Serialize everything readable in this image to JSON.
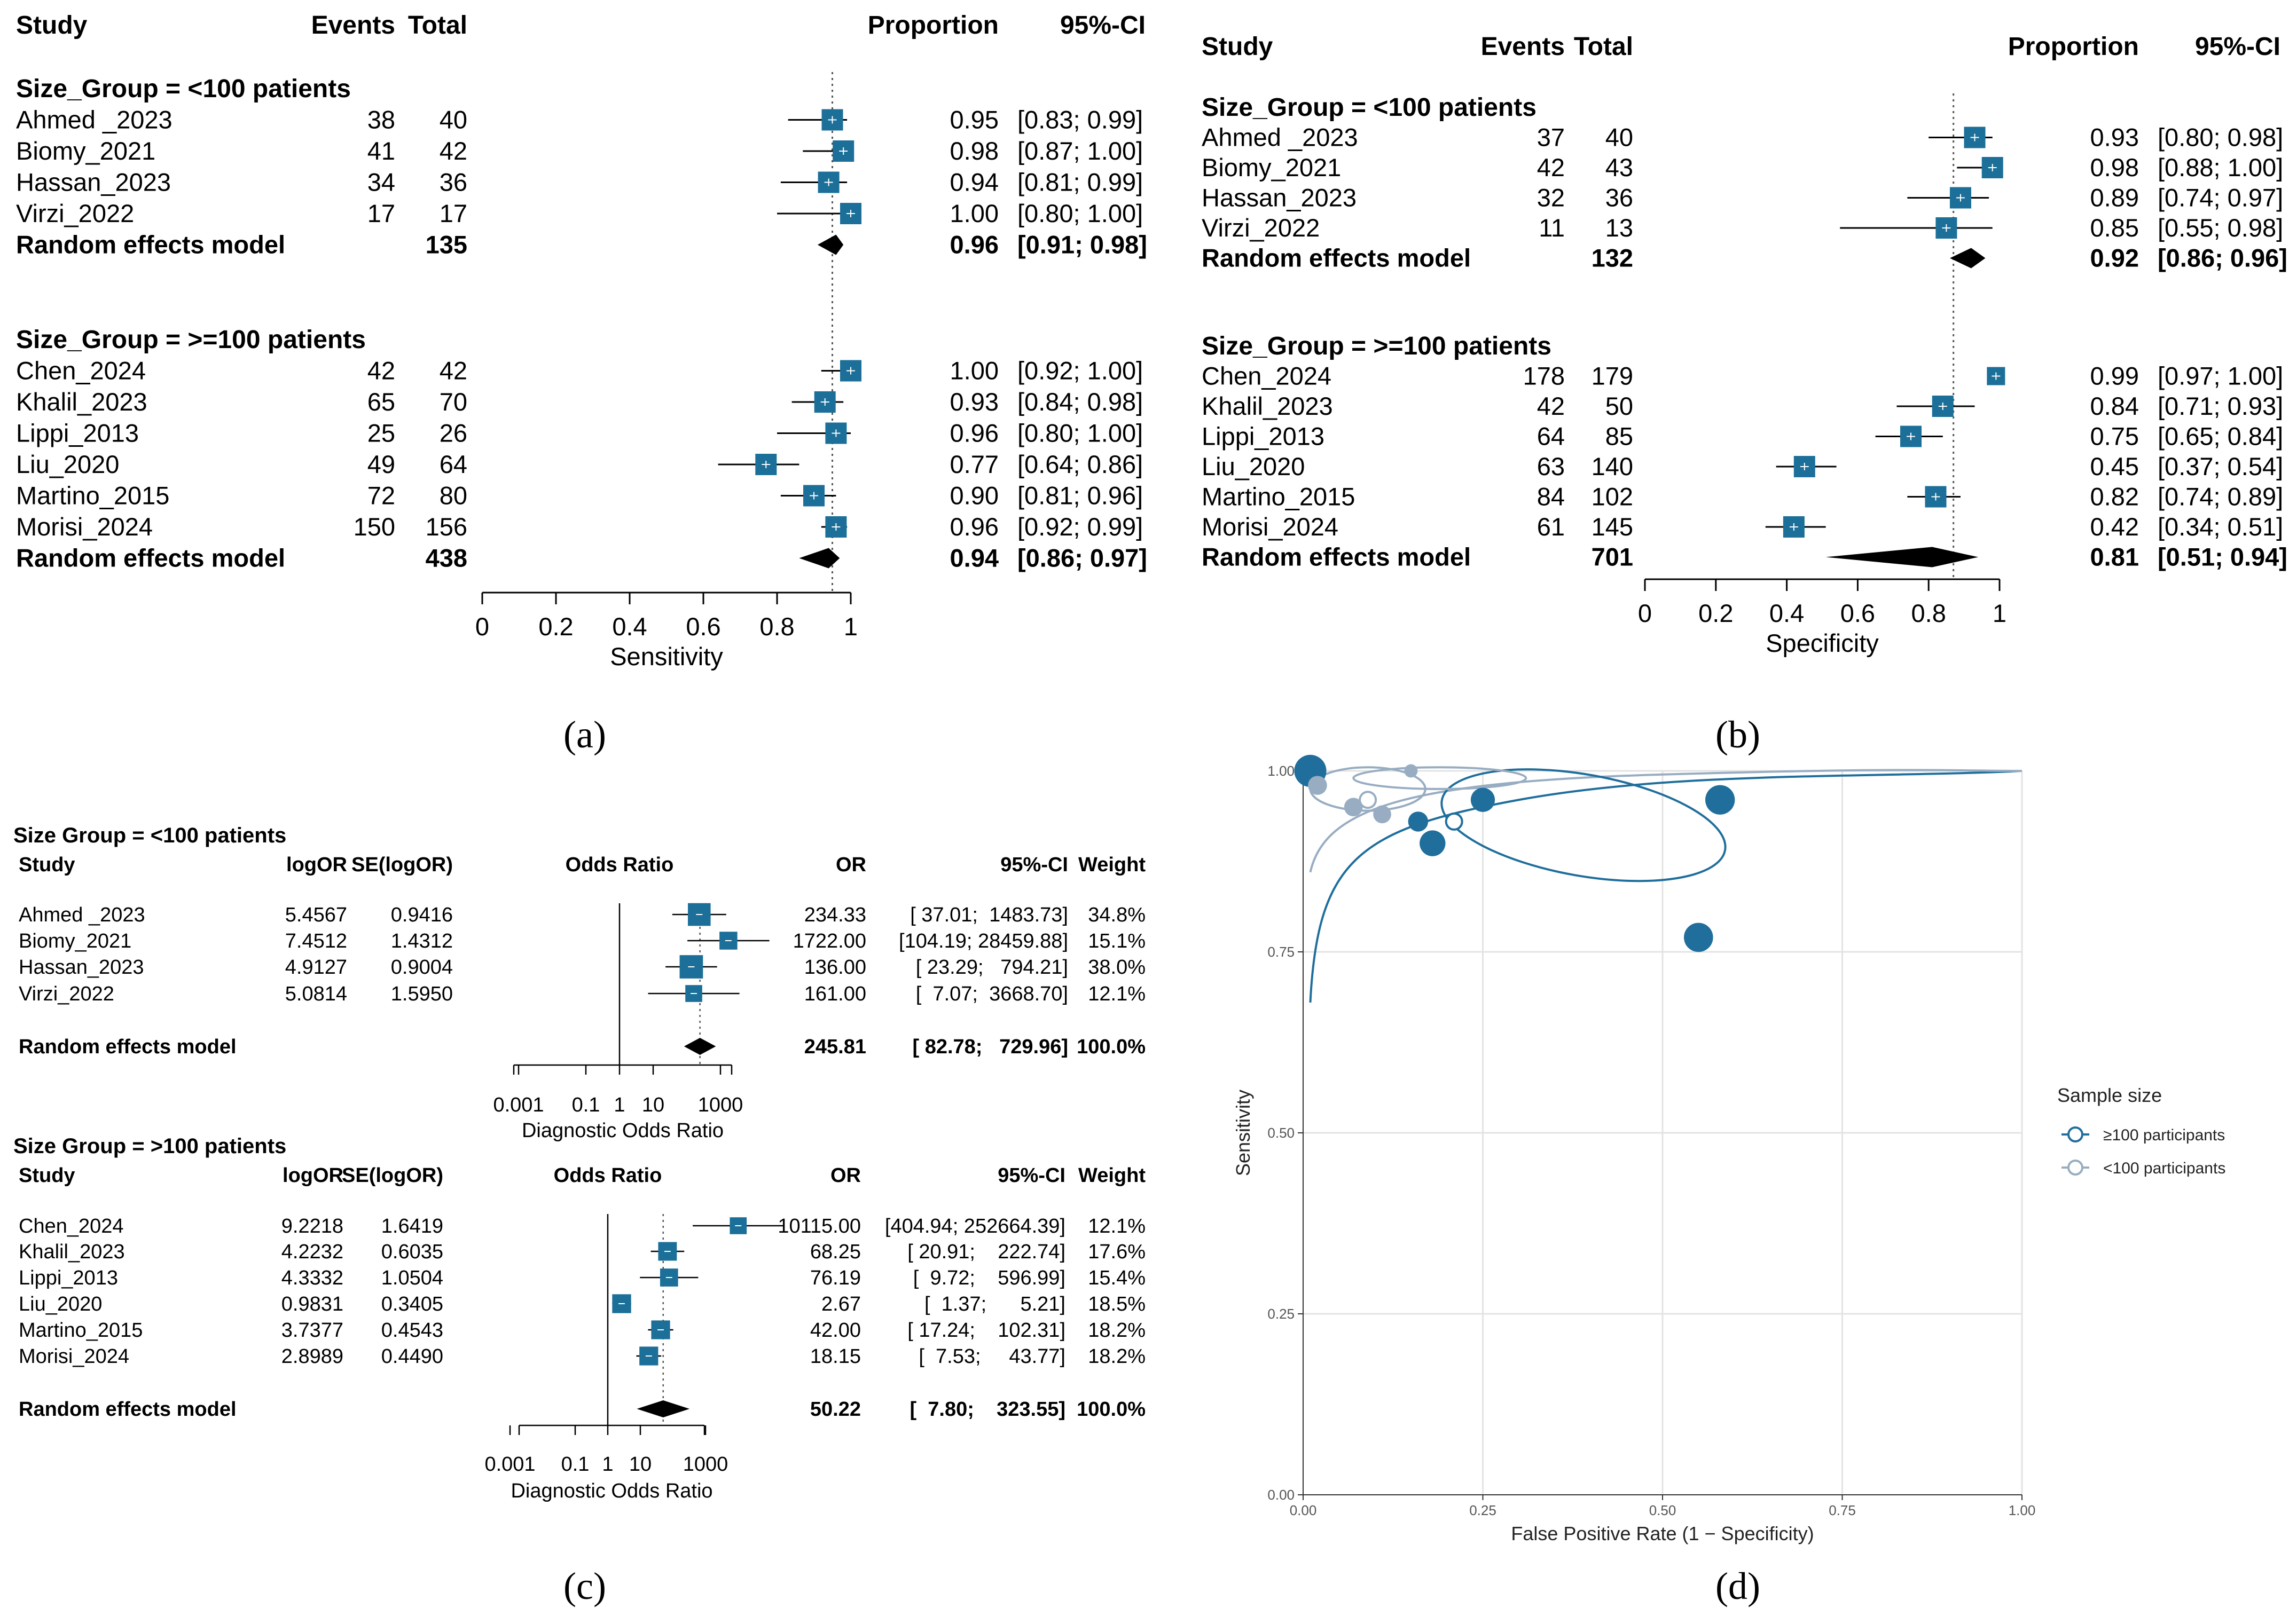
{
  "chart_data": [
    {
      "panel": "(a)",
      "type": "forest",
      "headers": {
        "study": "Study",
        "events": "Events",
        "total": "Total",
        "effect": "Proportion",
        "ci": "95%-CI"
      },
      "groups": [
        {
          "label": "Size_Group = <100 patients",
          "studies": [
            {
              "name": "Ahmed _2023",
              "events": "38",
              "total": "40",
              "value": 0.95,
              "lo": 0.83,
              "hi": 0.99,
              "w": 1.0,
              "est": "0.95",
              "ci": "[0.83; 0.99]"
            },
            {
              "name": "Biomy_2021",
              "events": "41",
              "total": "42",
              "value": 0.98,
              "lo": 0.87,
              "hi": 1.0,
              "w": 1.0,
              "est": "0.98",
              "ci": "[0.87; 1.00]"
            },
            {
              "name": "Hassan_2023",
              "events": "34",
              "total": "36",
              "value": 0.94,
              "lo": 0.81,
              "hi": 0.99,
              "w": 1.0,
              "est": "0.94",
              "ci": "[0.81; 0.99]"
            },
            {
              "name": "Virzi_2022",
              "events": "17",
              "total": "17",
              "value": 1.0,
              "lo": 0.8,
              "hi": 1.0,
              "w": 1.0,
              "est": "1.00",
              "ci": "[0.80; 1.00]"
            }
          ],
          "summary": {
            "label": "Random effects model",
            "total": "135",
            "value": 0.96,
            "lo": 0.91,
            "hi": 0.98,
            "est": "0.96",
            "ci": "[0.91; 0.98]"
          }
        },
        {
          "label": "Size_Group = >=100 patients",
          "studies": [
            {
              "name": "Chen_2024",
              "events": "42",
              "total": "42",
              "value": 1.0,
              "lo": 0.92,
              "hi": 1.0,
              "w": 1.0,
              "est": "1.00",
              "ci": "[0.92; 1.00]"
            },
            {
              "name": "Khalil_2023",
              "events": "65",
              "total": "70",
              "value": 0.93,
              "lo": 0.84,
              "hi": 0.98,
              "w": 1.0,
              "est": "0.93",
              "ci": "[0.84; 0.98]"
            },
            {
              "name": "Lippi_2013",
              "events": "25",
              "total": "26",
              "value": 0.96,
              "lo": 0.8,
              "hi": 1.0,
              "w": 1.0,
              "est": "0.96",
              "ci": "[0.80; 1.00]"
            },
            {
              "name": "Liu_2020",
              "events": "49",
              "total": "64",
              "value": 0.77,
              "lo": 0.64,
              "hi": 0.86,
              "w": 1.0,
              "est": "0.77",
              "ci": "[0.64; 0.86]"
            },
            {
              "name": "Martino_2015",
              "events": "72",
              "total": "80",
              "value": 0.9,
              "lo": 0.81,
              "hi": 0.96,
              "w": 1.0,
              "est": "0.90",
              "ci": "[0.81; 0.96]"
            },
            {
              "name": "Morisi_2024",
              "events": "150",
              "total": "156",
              "value": 0.96,
              "lo": 0.92,
              "hi": 0.99,
              "w": 1.0,
              "est": "0.96",
              "ci": "[0.92; 0.99]"
            }
          ],
          "summary": {
            "label": "Random effects model",
            "total": "438",
            "value": 0.94,
            "lo": 0.86,
            "hi": 0.97,
            "est": "0.94",
            "ci": "[0.86; 0.97]"
          }
        }
      ],
      "ref": 0.95,
      "axis": {
        "min": 0,
        "max": 1,
        "ticks": [
          "0",
          "0.2",
          "0.4",
          "0.6",
          "0.8",
          "1"
        ],
        "label": "Sensitivity"
      }
    },
    {
      "panel": "(b)",
      "type": "forest",
      "headers": {
        "study": "Study",
        "events": "Events",
        "total": "Total",
        "effect": "Proportion",
        "ci": "95%-CI"
      },
      "groups": [
        {
          "label": "Size_Group = <100 patients",
          "studies": [
            {
              "name": "Ahmed _2023",
              "events": "37",
              "total": "40",
              "value": 0.93,
              "lo": 0.8,
              "hi": 0.98,
              "w": 1.0,
              "est": "0.93",
              "ci": "[0.80; 0.98]"
            },
            {
              "name": "Biomy_2021",
              "events": "42",
              "total": "43",
              "value": 0.98,
              "lo": 0.88,
              "hi": 1.0,
              "w": 1.0,
              "est": "0.98",
              "ci": "[0.88; 1.00]"
            },
            {
              "name": "Hassan_2023",
              "events": "32",
              "total": "36",
              "value": 0.89,
              "lo": 0.74,
              "hi": 0.97,
              "w": 1.0,
              "est": "0.89",
              "ci": "[0.74; 0.97]"
            },
            {
              "name": "Virzi_2022",
              "events": "11",
              "total": "13",
              "value": 0.85,
              "lo": 0.55,
              "hi": 0.98,
              "w": 1.0,
              "est": "0.85",
              "ci": "[0.55; 0.98]"
            }
          ],
          "summary": {
            "label": "Random effects model",
            "total": "132",
            "value": 0.92,
            "lo": 0.86,
            "hi": 0.96,
            "est": "0.92",
            "ci": "[0.86; 0.96]"
          }
        },
        {
          "label": "Size_Group = >=100 patients",
          "studies": [
            {
              "name": "Chen_2024",
              "events": "178",
              "total": "179",
              "value": 0.99,
              "lo": 0.97,
              "hi": 1.0,
              "w": 0.85,
              "est": "0.99",
              "ci": "[0.97; 1.00]"
            },
            {
              "name": "Khalil_2023",
              "events": "42",
              "total": "50",
              "value": 0.84,
              "lo": 0.71,
              "hi": 0.93,
              "w": 1.0,
              "est": "0.84",
              "ci": "[0.71; 0.93]"
            },
            {
              "name": "Lippi_2013",
              "events": "64",
              "total": "85",
              "value": 0.75,
              "lo": 0.65,
              "hi": 0.84,
              "w": 1.0,
              "est": "0.75",
              "ci": "[0.65; 0.84]"
            },
            {
              "name": "Liu_2020",
              "events": "63",
              "total": "140",
              "value": 0.45,
              "lo": 0.37,
              "hi": 0.54,
              "w": 1.0,
              "est": "0.45",
              "ci": "[0.37; 0.54]"
            },
            {
              "name": "Martino_2015",
              "events": "84",
              "total": "102",
              "value": 0.82,
              "lo": 0.74,
              "hi": 0.89,
              "w": 1.0,
              "est": "0.82",
              "ci": "[0.74; 0.89]"
            },
            {
              "name": "Morisi_2024",
              "events": "61",
              "total": "145",
              "value": 0.42,
              "lo": 0.34,
              "hi": 0.51,
              "w": 1.0,
              "est": "0.42",
              "ci": "[0.34; 0.51]"
            }
          ],
          "summary": {
            "label": "Random effects model",
            "total": "701",
            "value": 0.81,
            "lo": 0.51,
            "hi": 0.94,
            "est": "0.81",
            "ci": "[0.51; 0.94]"
          }
        }
      ],
      "ref": 0.87,
      "axis": {
        "min": 0,
        "max": 1,
        "ticks": [
          "0",
          "0.2",
          "0.4",
          "0.6",
          "0.8",
          "1"
        ],
        "label": "Specificity"
      }
    },
    {
      "panel": "(c)",
      "type": "forest-log",
      "headers": {
        "study": "Study",
        "logor": "logOR",
        "se": "SE(logOR)",
        "effect": "Odds Ratio",
        "or": "OR",
        "ci": "95%-CI",
        "weight": "Weight"
      },
      "groups": [
        {
          "label": "Size Group = <100 patients",
          "studies": [
            {
              "name": "Ahmed _2023",
              "logor": "5.4567",
              "se": "0.9416",
              "value": 234.33,
              "lo": 37.01,
              "hi": 1483.73,
              "weight": 34.8,
              "or": "234.33",
              "ci": "[ 37.01;  1483.73]",
              "wt": "34.8%"
            },
            {
              "name": "Biomy_2021",
              "logor": "7.4512",
              "se": "1.4312",
              "value": 1722.0,
              "lo": 104.19,
              "hi": 28459.88,
              "weight": 15.1,
              "or": "1722.00",
              "ci": "[104.19; 28459.88]",
              "wt": "15.1%"
            },
            {
              "name": "Hassan_2023",
              "logor": "4.9127",
              "se": "0.9004",
              "value": 136.0,
              "lo": 23.29,
              "hi": 794.21,
              "weight": 38.0,
              "or": "136.00",
              "ci": "[ 23.29;   794.21]",
              "wt": "38.0%"
            },
            {
              "name": "Virzi_2022",
              "logor": "5.0814",
              "se": "1.5950",
              "value": 161.0,
              "lo": 7.07,
              "hi": 3668.7,
              "weight": 12.1,
              "or": "161.00",
              "ci": "[  7.07;  3668.70]",
              "wt": "12.1%"
            }
          ],
          "summary": {
            "label": "Random effects model",
            "value": 245.81,
            "lo": 82.78,
            "hi": 729.96,
            "or": "245.81",
            "ci": "[ 82.78;   729.96]",
            "wt": "100.0%"
          }
        },
        {
          "label": "Size Group = >100 patients",
          "studies": [
            {
              "name": "Chen_2024",
              "logor": "9.2218",
              "se": "1.6419",
              "value": 10115.0,
              "lo": 404.94,
              "hi": 252664.39,
              "weight": 12.1,
              "or": "10115.00",
              "ci": "[404.94; 252664.39]",
              "wt": "12.1%"
            },
            {
              "name": "Khalil_2023",
              "logor": "4.2232",
              "se": "0.6035",
              "value": 68.25,
              "lo": 20.91,
              "hi": 222.74,
              "weight": 17.6,
              "or": "68.25",
              "ci": "[ 20.91;    222.74]",
              "wt": "17.6%"
            },
            {
              "name": "Lippi_2013",
              "logor": "4.3332",
              "se": "1.0504",
              "value": 76.19,
              "lo": 9.72,
              "hi": 596.99,
              "weight": 15.4,
              "or": "76.19",
              "ci": "[  9.72;    596.99]",
              "wt": "15.4%"
            },
            {
              "name": "Liu_2020",
              "logor": "0.9831",
              "se": "0.3405",
              "value": 2.67,
              "lo": 1.37,
              "hi": 5.21,
              "weight": 18.5,
              "or": "2.67",
              "ci": "[  1.37;      5.21]",
              "wt": "18.5%"
            },
            {
              "name": "Martino_2015",
              "logor": "3.7377",
              "se": "0.4543",
              "value": 42.0,
              "lo": 17.24,
              "hi": 102.31,
              "weight": 18.2,
              "or": "42.00",
              "ci": "[ 17.24;    102.31]",
              "wt": "18.2%"
            },
            {
              "name": "Morisi_2024",
              "logor": "2.8989",
              "se": "0.4490",
              "value": 18.15,
              "lo": 7.53,
              "hi": 43.77,
              "weight": 18.2,
              "or": "18.15",
              "ci": "[  7.53;     43.77]",
              "wt": "18.2%"
            }
          ],
          "summary": {
            "label": "Random effects model",
            "value": 50.22,
            "lo": 7.8,
            "hi": 323.55,
            "or": "50.22",
            "ci": "[  7.80;    323.55]",
            "wt": "100.0%"
          }
        }
      ],
      "axis": {
        "ticks": [
          "0.001",
          "0.1",
          "1",
          "10",
          "1000"
        ],
        "label": "Diagnostic Odds Ratio"
      }
    },
    {
      "panel": "(d)",
      "type": "scatter",
      "title": "",
      "xlabel": "False Positive Rate (1 − Specificity)",
      "ylabel": "Sensitivity",
      "xlim": [
        0,
        1
      ],
      "ylim": [
        0,
        1
      ],
      "xticks": [
        "0.00",
        "0.25",
        "0.50",
        "0.75",
        "1.00"
      ],
      "yticks": [
        "0.00",
        "0.25",
        "0.50",
        "0.75",
        "1.00"
      ],
      "legend": {
        "title": "Sample size",
        "items": [
          "≥100 participants",
          "<100 participants"
        ]
      },
      "series": [
        {
          "name": "≥100 participants",
          "color": "#1f6e9c",
          "points": [
            {
              "fpr": 0.01,
              "sens": 1.0,
              "n": 179
            },
            {
              "fpr": 0.16,
              "sens": 0.93,
              "n": 50
            },
            {
              "fpr": 0.25,
              "sens": 0.96,
              "n": 85
            },
            {
              "fpr": 0.55,
              "sens": 0.77,
              "n": 140
            },
            {
              "fpr": 0.18,
              "sens": 0.9,
              "n": 102
            },
            {
              "fpr": 0.58,
              "sens": 0.96,
              "n": 145
            }
          ],
          "summary_point": {
            "fpr": 0.21,
            "sens": 0.93
          }
        },
        {
          "name": "<100 participants",
          "color": "#98adc2",
          "points": [
            {
              "fpr": 0.07,
              "sens": 0.95,
              "n": 40
            },
            {
              "fpr": 0.02,
              "sens": 0.98,
              "n": 43
            },
            {
              "fpr": 0.11,
              "sens": 0.94,
              "n": 36
            },
            {
              "fpr": 0.15,
              "sens": 1.0,
              "n": 13
            }
          ],
          "summary_point": {
            "fpr": 0.09,
            "sens": 0.96
          }
        }
      ]
    }
  ]
}
